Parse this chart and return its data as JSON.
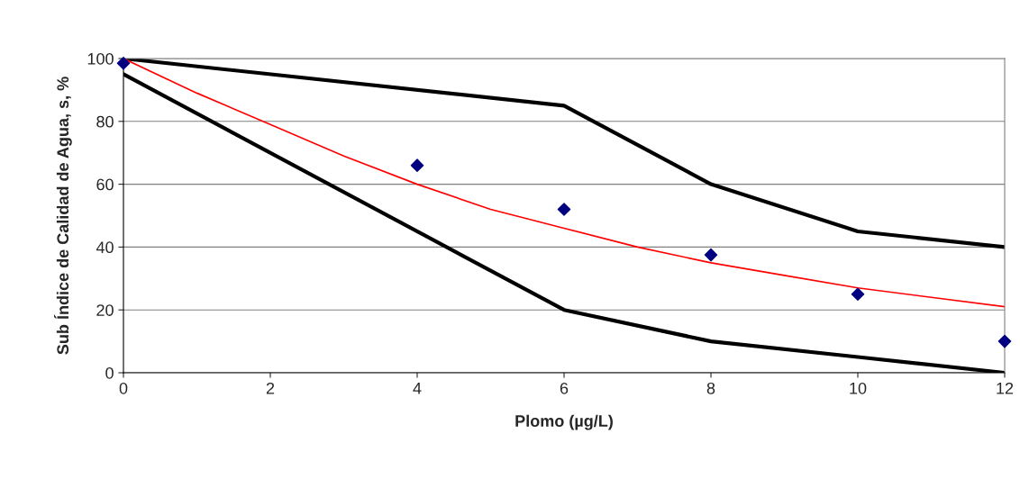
{
  "chart_data": {
    "type": "line",
    "xlabel": "Plomo (µg/L)",
    "ylabel": "Sub Índice de Calidad de Agua, s, %",
    "xlim": [
      0,
      12
    ],
    "xticks": [
      0,
      2,
      4,
      6,
      8,
      10,
      12
    ],
    "ylim": [
      0,
      100
    ],
    "yticks": [
      0,
      20,
      40,
      60,
      80,
      100
    ],
    "grid": "y",
    "legend": false,
    "series": [
      {
        "color": "#000000",
        "x": [
          0,
          6,
          8,
          10,
          12
        ],
        "values": [
          100,
          85,
          60,
          45,
          40
        ]
      },
      {
        "color": "#000000",
        "x": [
          0,
          6,
          8,
          10,
          12
        ],
        "values": [
          95,
          20,
          10,
          5,
          0
        ]
      },
      {
        "color": "#ff0000",
        "x": [
          0,
          1,
          2,
          3,
          4,
          5,
          6,
          7,
          8,
          9,
          10,
          11,
          12
        ],
        "values": [
          100,
          89,
          79,
          69,
          60,
          52,
          46,
          40,
          35,
          31,
          27,
          24,
          21
        ]
      },
      {
        "type": "scatter",
        "color": "#000080",
        "marker": "diamond",
        "x": [
          0,
          4,
          6,
          8,
          10,
          12
        ],
        "values": [
          98.5,
          66,
          52,
          37.5,
          25,
          10
        ]
      }
    ]
  }
}
